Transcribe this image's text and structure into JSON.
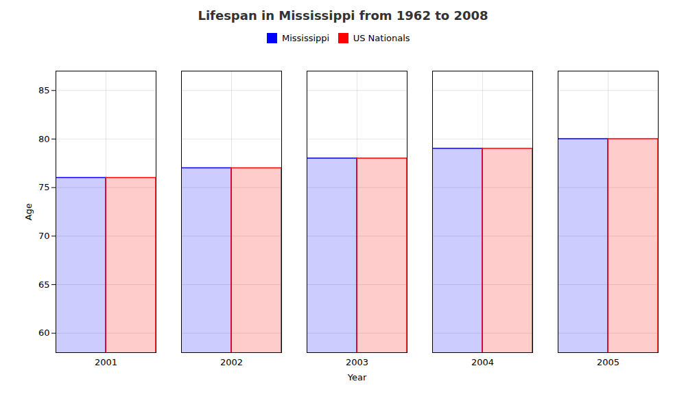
{
  "chart_data": {
    "type": "bar",
    "title": "Lifespan in Mississippi from 1962 to 2008",
    "xlabel": "Year",
    "ylabel": "Age",
    "categories": [
      "2001",
      "2002",
      "2003",
      "2004",
      "2005"
    ],
    "series": [
      {
        "name": "Mississippi",
        "color": "#0000ff",
        "values": [
          76,
          77,
          78,
          79,
          80
        ]
      },
      {
        "name": "US Nationals",
        "color": "#ff0000",
        "values": [
          76,
          77,
          78,
          79,
          80
        ]
      }
    ],
    "ylim": [
      58,
      87
    ],
    "yticks": [
      60,
      65,
      70,
      75,
      80,
      85
    ],
    "grid": true,
    "legend": "top"
  }
}
